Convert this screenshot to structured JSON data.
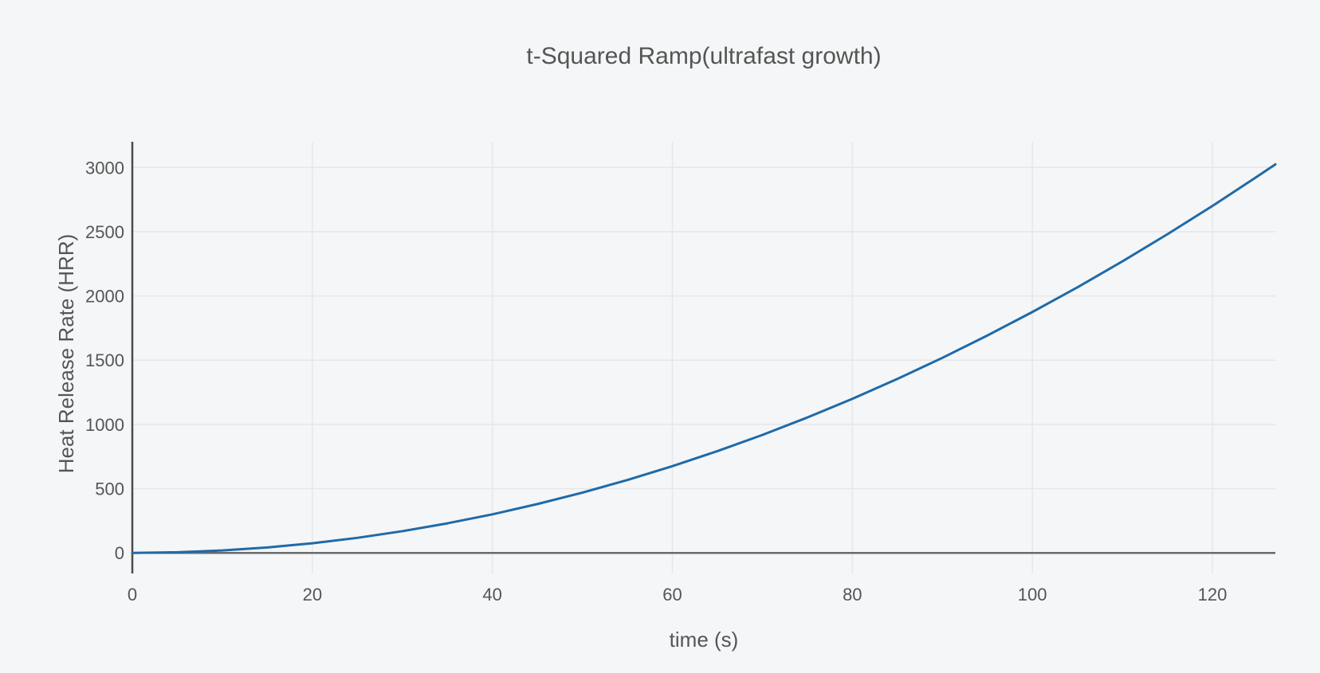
{
  "chart_data": {
    "type": "line",
    "title": "t-Squared Ramp(ultrafast growth)",
    "xlabel": "time (s)",
    "ylabel": "Heat Release Rate (HRR)",
    "xlim": [
      0,
      127
    ],
    "ylim": [
      -160,
      3200
    ],
    "xticks": [
      0,
      20,
      40,
      60,
      80,
      100,
      120
    ],
    "xtick_labels": [
      "0",
      "20",
      "40",
      "60",
      "80",
      "100",
      "120"
    ],
    "yticks": [
      0,
      500,
      1000,
      1500,
      2000,
      2500,
      3000
    ],
    "ytick_labels": [
      "0",
      "500",
      "1000",
      "1500",
      "2000",
      "2500",
      "3000"
    ],
    "grid": true,
    "series": [
      {
        "name": "HRR",
        "color": "#1f6aa8",
        "x": [
          0,
          5,
          10,
          15,
          20,
          25,
          30,
          35,
          40,
          45,
          50,
          55,
          60,
          65,
          70,
          75,
          80,
          85,
          90,
          95,
          100,
          105,
          110,
          115,
          120,
          125,
          127
        ],
        "y": [
          0,
          5,
          19,
          42,
          75,
          117,
          169,
          230,
          300,
          380,
          469,
          567,
          675,
          792,
          918,
          1054,
          1199,
          1354,
          1518,
          1692,
          1875,
          2067,
          2269,
          2480,
          2700,
          2930,
          3024
        ]
      }
    ]
  },
  "colors": {
    "background": "#f5f6f7",
    "grid": "#e6e7e9",
    "axis": "#4a4a4a",
    "zero_line": "#6b6b6b",
    "text": "#555555",
    "line": "#1f6aa8"
  }
}
